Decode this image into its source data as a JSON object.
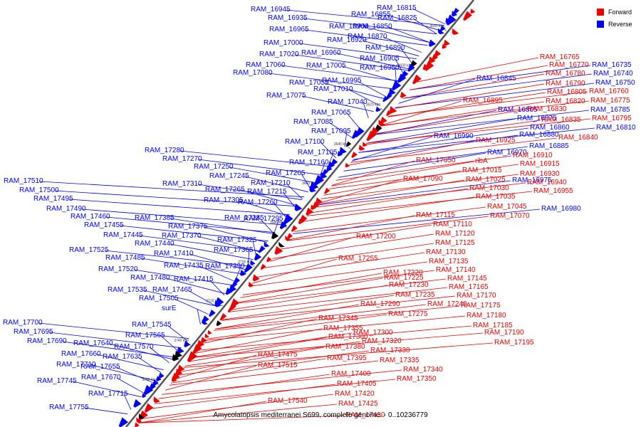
{
  "caption": "Amycolatopsis mediterranei S699, complete genome. - 0..10236779",
  "legend": [
    {
      "label": "Forward",
      "color": "#ee0000"
    },
    {
      "label": "Reverse",
      "color": "#0000ff"
    }
  ],
  "colors": {
    "forward": "#ee0000",
    "reverse": "#0000ff",
    "axis": "#555555",
    "other": "#000000"
  },
  "ticks": [
    "3580 kbp",
    "3600 kbp",
    "3620 kbp",
    "3640 kbp",
    "3660 kbp",
    "3680 kbp",
    "3700 kbp",
    "3720 kbp",
    "3740 kbp",
    "3760 kbp"
  ],
  "reverse_genes": [
    "RAM_16945",
    "RAM_16935",
    "RAM_16965",
    "RAM_17000",
    "RAM_17020",
    "RAM_17060",
    "RAM_17080",
    "RAM_17055",
    "RAM_17075",
    "RAM_16855",
    "RAM_16825",
    "RAM_16900",
    "RAM_16850",
    "RAM_16920",
    "RAM_16870",
    "RAM_16960",
    "RAM_16890",
    "RAM_16905",
    "RAM_17005",
    "RAM_16950",
    "RAM_16995",
    "RAM_17010",
    "RAM_17040",
    "RAM_17065",
    "RAM_17085",
    "RAM_17095",
    "RAM_17100",
    "RAM_17105",
    "RAM_17160",
    "RAM_17205",
    "RAM_17210",
    "RAM_17215",
    "RAM_17280",
    "RAM_17270",
    "RAM_17250",
    "RAM_17245",
    "RAM_17310",
    "RAM_17265",
    "RAM_17305",
    "RAM_17260",
    "RAM_17510",
    "RAM_17500",
    "RAM_17495",
    "RAM_17490",
    "RAM_17460",
    "RAM_17455",
    "RAM_17385",
    "RAM_17375",
    "RAM_17285",
    "RAM_17295",
    "RAM_17445",
    "RAM_17370",
    "RAM_17440",
    "RAM_17325",
    "RAM_17525",
    "RAM_17485",
    "RAM_17410",
    "RAM_17365",
    "RAM_17520",
    "RAM_17435",
    "RAM_17390",
    "RAM_17480",
    "RAM_17415",
    "RAM_17535",
    "RAM_17465",
    "RAM_17505",
    "surE",
    "RAM_17545",
    "RAM_17700",
    "RAM_17695",
    "RAM_17565",
    "RAM_17690",
    "RAM_17640",
    "RAM_17570",
    "RAM_17660",
    "RAM_17635",
    "RAM_17655",
    "RAM_17710",
    "RAM_17670",
    "RAM_17745",
    "RAM_17715",
    "RAM_17755",
    "RAM_16815",
    "RAM_16845",
    "RAM_16865",
    "RAM_16875",
    "RAM_16880",
    "RAM_16860",
    "RAM_16885",
    "RAM_16990",
    "RAM_16970",
    "RAM_16735",
    "RAM_16740",
    "RAM_16750",
    "RAM_16785",
    "RAM_16810",
    "RAM_16975",
    "RAM_16980"
  ],
  "forward_genes": [
    "RAM_16765",
    "RAM_16770",
    "RAM_16780",
    "RAM_16790",
    "RAM_16805",
    "RAM_16760",
    "RAM_16775",
    "RAM_16820",
    "RAM_16830",
    "RAM_16835",
    "RAM_16795",
    "RAM_16840",
    "RAM_16895",
    "RAM_16925",
    "RAM_16910",
    "RAM_16915",
    "RAM_16930",
    "RAM_16940",
    "RAM_16955",
    "RAM_17050",
    "ribA",
    "RAM_17015",
    "RAM_17025",
    "RAM_17030",
    "RAM_17035",
    "RAM_17045",
    "RAM_17090",
    "RAM_17070",
    "RAM_17115",
    "RAM_17110",
    "RAM_17120",
    "RAM_17125",
    "RAM_17130",
    "RAM_17200",
    "RAM_17135",
    "RAM_17140",
    "RAM_17255",
    "RAM_17145",
    "RAM_17220",
    "RAM_17165",
    "RAM_17225",
    "RAM_17170",
    "RAM_17230",
    "RAM_17175",
    "RAM_17235",
    "RAM_17180",
    "RAM_17240",
    "RAM_17185",
    "RAM_17290",
    "RAM_17190",
    "RAM_17275",
    "RAM_17195",
    "RAM_17345",
    "RAM_17355",
    "RAM_17300",
    "RAM_17360",
    "RAM_17320",
    "RAM_17380",
    "RAM_17330",
    "RAM_17395",
    "RAM_17335",
    "RAM_17475",
    "RAM_17400",
    "RAM_17340",
    "RAM_17515",
    "RAM_17405",
    "RAM_17350",
    "RAM_17420",
    "RAM_17425",
    "RAM_17430",
    "RAM_17540"
  ]
}
